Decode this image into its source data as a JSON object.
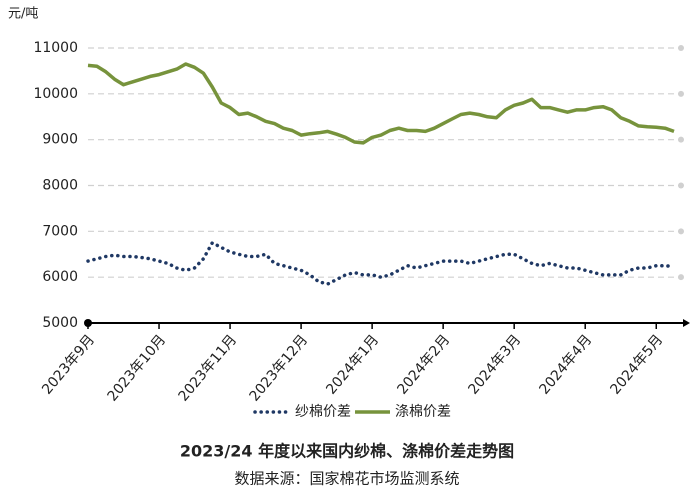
{
  "chart_data": {
    "type": "line",
    "title": "2023/24 年度以来国内纱棉、涤棉价差走势图",
    "source": "数据来源：国家棉花市场监测系统",
    "y_label": "元/吨",
    "ylim": [
      5000,
      11000
    ],
    "yticks": [
      5000,
      6000,
      7000,
      8000,
      9000,
      10000,
      11000
    ],
    "grid": true,
    "legend": "bottom",
    "categories": [
      "2023年9月",
      null,
      null,
      null,
      null,
      null,
      null,
      null,
      "2023年10月",
      null,
      null,
      null,
      null,
      null,
      null,
      null,
      "2023年11月",
      null,
      null,
      null,
      null,
      null,
      null,
      null,
      "2023年12月",
      null,
      null,
      null,
      null,
      null,
      null,
      null,
      "2024年1月",
      null,
      null,
      null,
      null,
      null,
      null,
      null,
      "2024年2月",
      null,
      null,
      null,
      null,
      null,
      null,
      null,
      "2024年3月",
      null,
      null,
      null,
      null,
      null,
      null,
      null,
      "2024年4月",
      null,
      null,
      null,
      null,
      null,
      null,
      null,
      "2024年5月",
      null,
      null
    ],
    "series": [
      {
        "name": "纱棉价差",
        "color": "#1f3864",
        "style": "dotted",
        "values": [
          6350,
          6400,
          6450,
          6480,
          6450,
          6450,
          6430,
          6400,
          6350,
          6300,
          6200,
          6150,
          6200,
          6400,
          6750,
          6650,
          6550,
          6500,
          6450,
          6450,
          6500,
          6300,
          6250,
          6200,
          6150,
          6050,
          5900,
          5850,
          5950,
          6050,
          6100,
          6050,
          6050,
          6000,
          6050,
          6150,
          6250,
          6200,
          6250,
          6300,
          6350,
          6350,
          6350,
          6300,
          6350,
          6400,
          6450,
          6500,
          6500,
          6400,
          6300,
          6250,
          6300,
          6250,
          6200,
          6200,
          6150,
          6100,
          6050,
          6050,
          6050,
          6150,
          6200,
          6200,
          6250,
          6250,
          6230
        ]
      },
      {
        "name": "涤棉价差",
        "color": "#77933c",
        "style": "solid",
        "values": [
          10620,
          10600,
          10480,
          10320,
          10200,
          10260,
          10320,
          10380,
          10420,
          10480,
          10540,
          10650,
          10580,
          10450,
          10150,
          9800,
          9700,
          9550,
          9580,
          9500,
          9400,
          9350,
          9250,
          9200,
          9100,
          9130,
          9150,
          9180,
          9120,
          9050,
          8950,
          8930,
          9050,
          9100,
          9200,
          9250,
          9200,
          9200,
          9180,
          9250,
          9350,
          9450,
          9550,
          9580,
          9550,
          9500,
          9480,
          9650,
          9750,
          9800,
          9880,
          9700,
          9700,
          9650,
          9600,
          9650,
          9650,
          9700,
          9720,
          9650,
          9480,
          9400,
          9300,
          9280,
          9270,
          9250,
          9180
        ]
      }
    ]
  }
}
